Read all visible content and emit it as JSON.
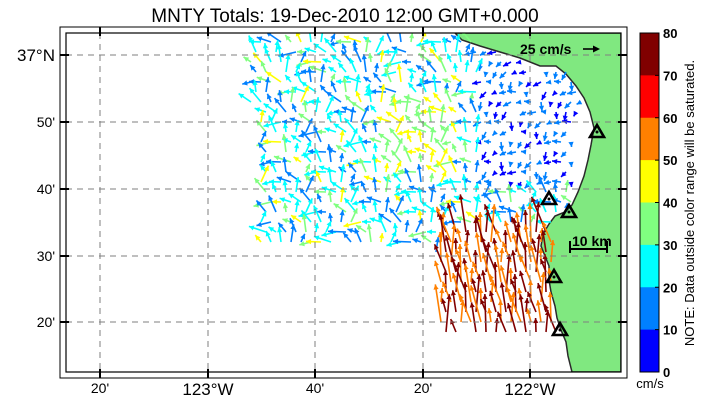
{
  "title": "MNTY Totals: 19-Dec-2010 12:00 GMT+0.000",
  "map": {
    "x_ticks": [
      {
        "label": "20'",
        "big": false
      },
      {
        "label": "123°W",
        "big": true
      },
      {
        "label": "40'",
        "big": false
      },
      {
        "label": "20'",
        "big": false
      },
      {
        "label": "122°W",
        "big": true
      }
    ],
    "y_ticks": [
      {
        "label": "37°N",
        "big": true
      },
      {
        "label": "50'",
        "big": false
      },
      {
        "label": "40'",
        "big": false
      },
      {
        "label": "30'",
        "big": false
      },
      {
        "label": "20'",
        "big": false
      }
    ],
    "reference_vector_label": "25 cm/s",
    "scale_bar_label": "10 km",
    "land_color": "#80e880",
    "ocean_color": "#ffffff",
    "station_count": 5
  },
  "colorbar": {
    "ticks": [
      "80",
      "70",
      "60",
      "50",
      "40",
      "30",
      "20",
      "10",
      "0"
    ],
    "colors": [
      "#800000",
      "#ff0000",
      "#ff8000",
      "#ffff00",
      "#80ff80",
      "#00ffff",
      "#0080ff",
      "#0000ff"
    ],
    "unit": "cm/s",
    "note": "NOTE: Data outside color range will be saturated."
  }
}
